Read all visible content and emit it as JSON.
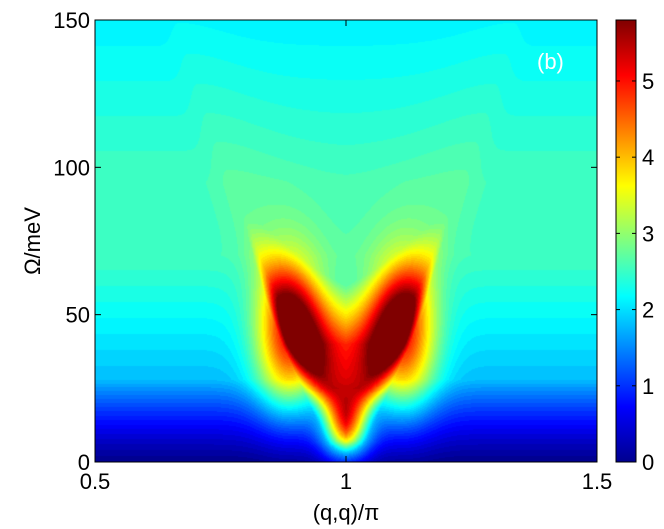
{
  "chart_data": {
    "type": "heatmap",
    "title": "",
    "panel_label": "(b)",
    "xlabel": "(q,q)/π",
    "ylabel": "Ω/meV",
    "xlim": [
      0.5,
      1.5
    ],
    "ylim": [
      0,
      150
    ],
    "x_ticks": [
      {
        "value": 0.5,
        "label": "0.5"
      },
      {
        "value": 1.0,
        "label": "1"
      },
      {
        "value": 1.5,
        "label": "1.5"
      }
    ],
    "y_ticks": [
      {
        "value": 0,
        "label": "0"
      },
      {
        "value": 50,
        "label": "50"
      },
      {
        "value": 100,
        "label": "100"
      },
      {
        "value": 150,
        "label": "150"
      }
    ],
    "colorbar": {
      "range": [
        0,
        5.8
      ],
      "colormap": "jet",
      "ticks": [
        {
          "value": 0,
          "label": "0"
        },
        {
          "value": 1,
          "label": "1"
        },
        {
          "value": 2,
          "label": "2"
        },
        {
          "value": 3,
          "label": "3"
        },
        {
          "value": 4,
          "label": "4"
        },
        {
          "value": 5,
          "label": "5"
        }
      ]
    },
    "features": [
      {
        "x": 0.885,
        "y": 42,
        "peak_value": 5.8
      },
      {
        "x": 1.115,
        "y": 42,
        "peak_value": 5.8
      },
      {
        "x": 1.0,
        "y": 10,
        "peak_value": 4.7
      }
    ],
    "grid": false
  },
  "colors": {
    "background": "#ffffff",
    "axis": "#000000",
    "panel_label": "#ffffff"
  }
}
